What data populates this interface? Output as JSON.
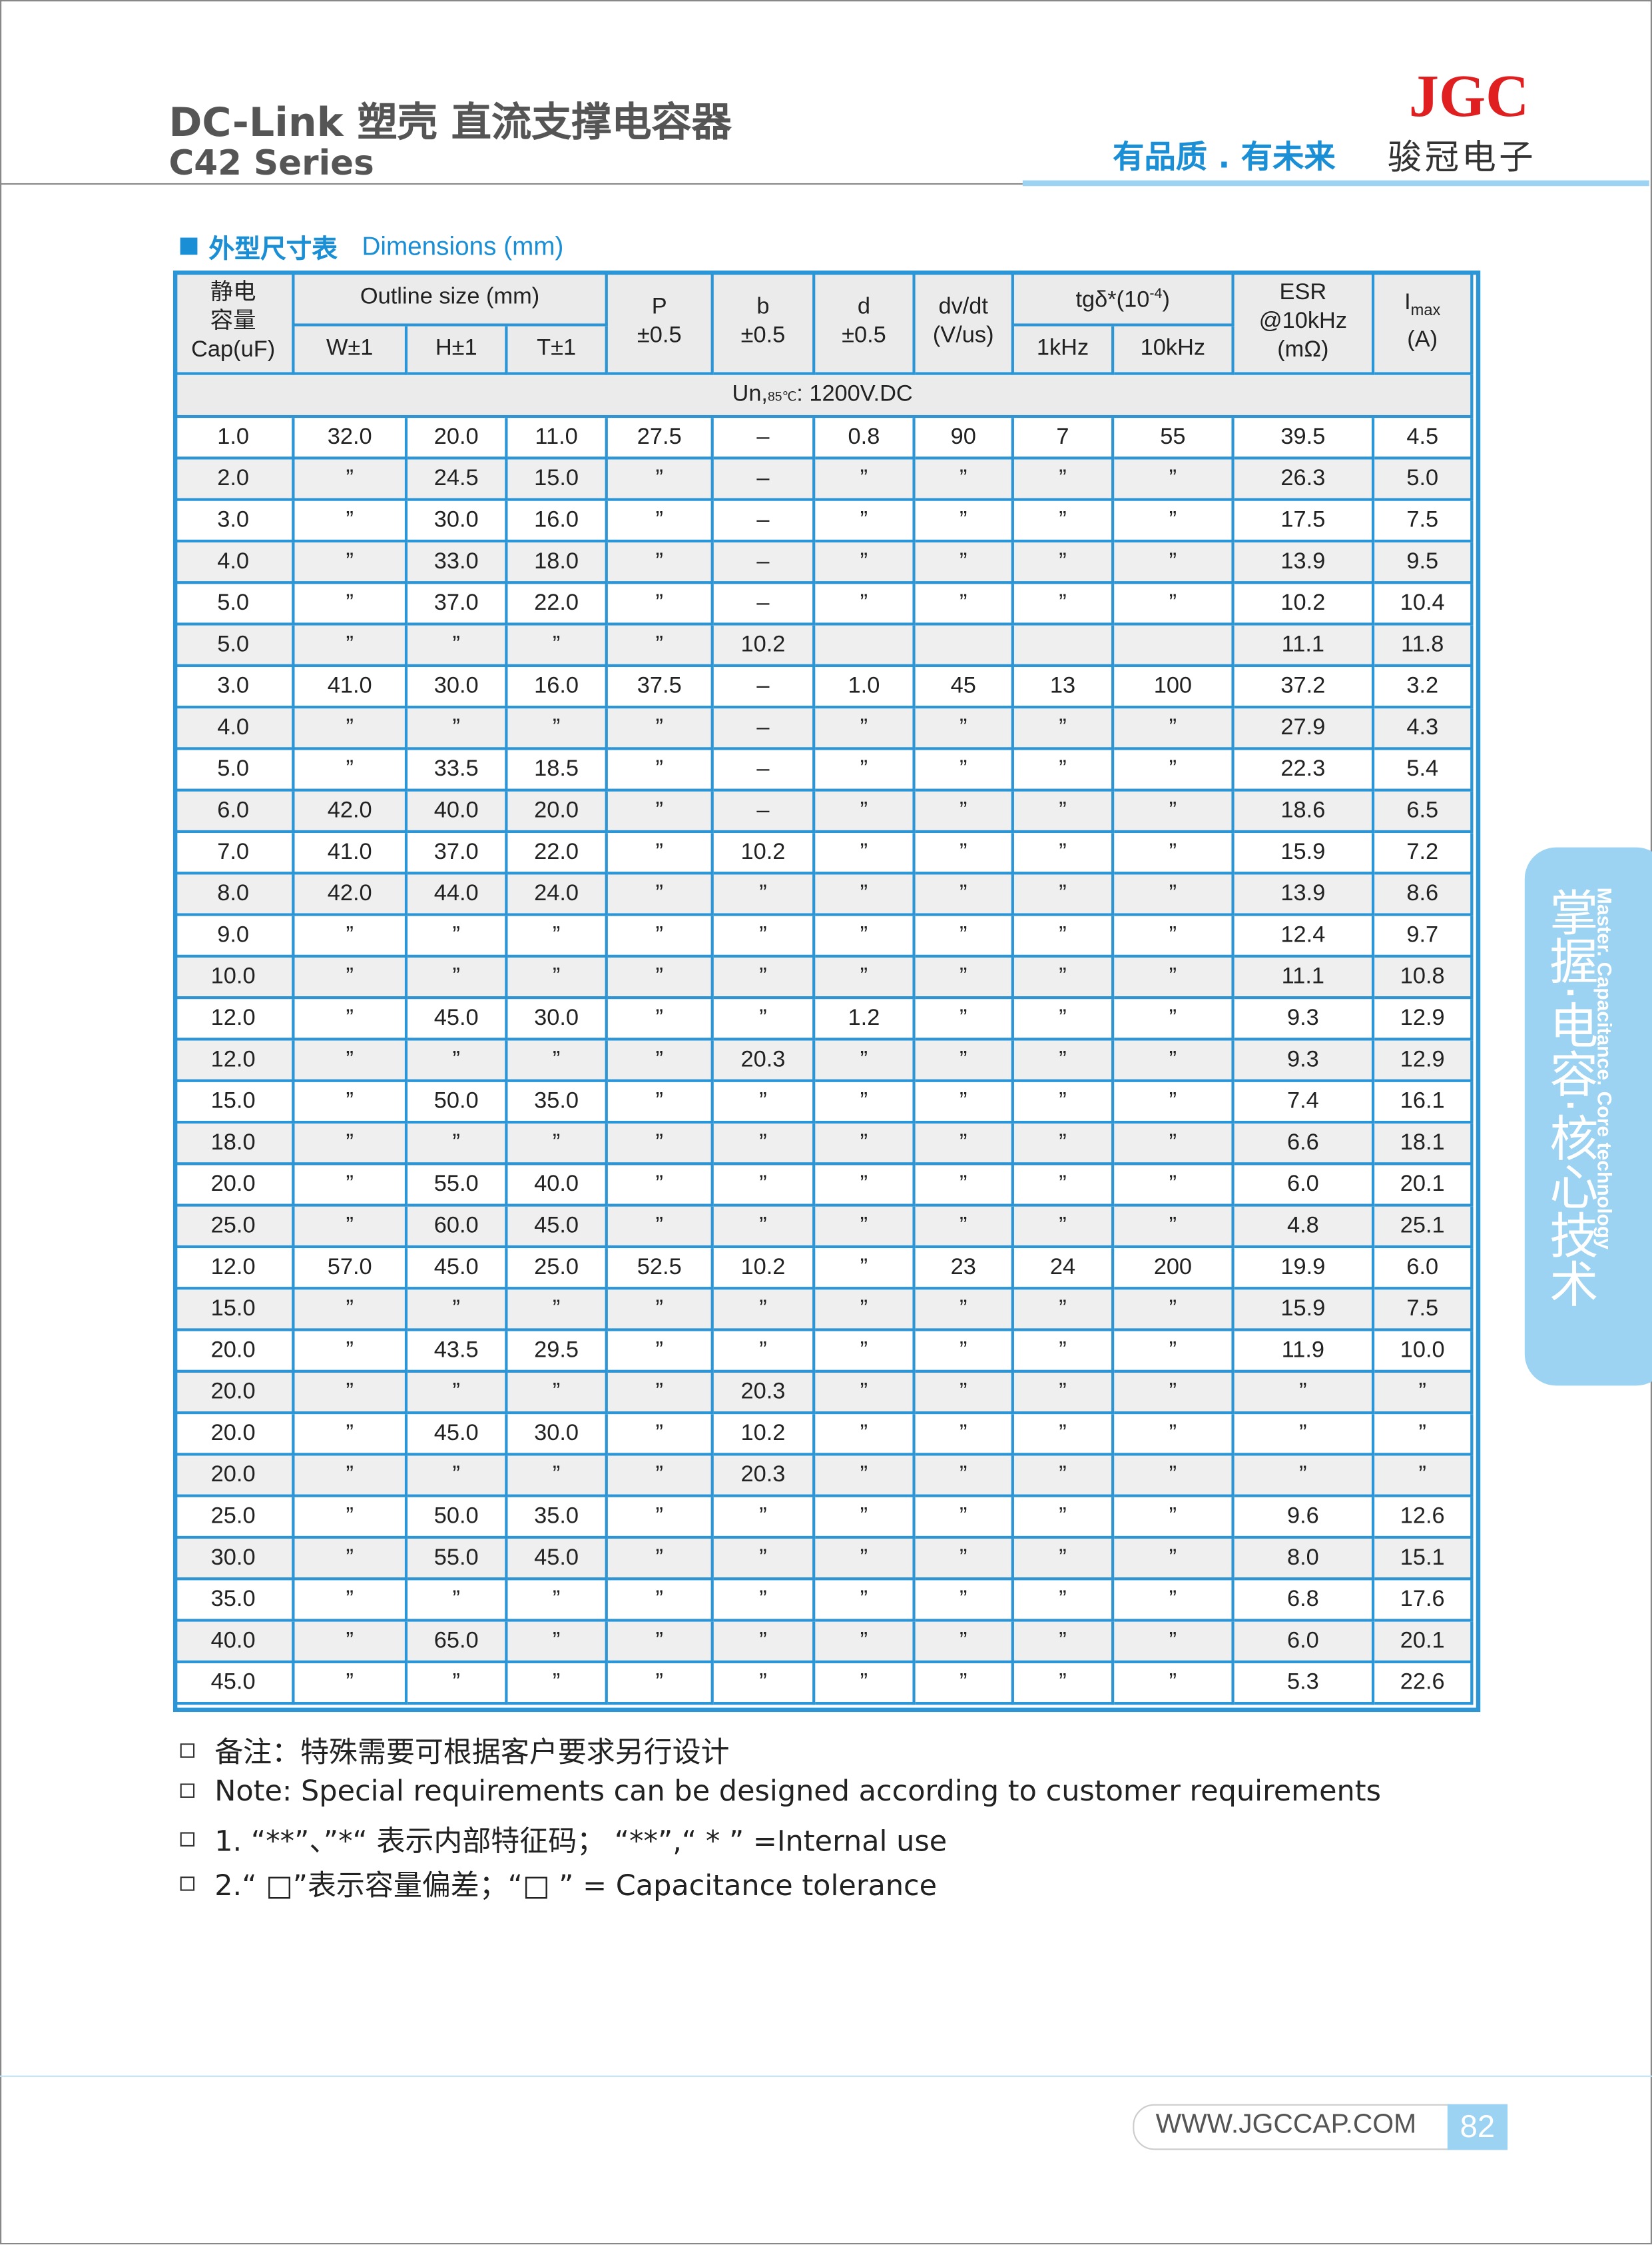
{
  "header": {
    "title": "DC-Link 塑壳  直流支撑电容器",
    "series": "C42 Series",
    "logo": "JGC",
    "slogan": "有品质 . 有未来",
    "company": "骏冠电子"
  },
  "section": {
    "title_cn": "外型尺寸表",
    "title_en": "Dimensions  (mm)"
  },
  "table": {
    "head": {
      "cap": [
        "静电",
        "容量",
        "Cap(uF)"
      ],
      "outline": "Outline size (mm)",
      "w": "W±1",
      "h": "H±1",
      "t": "T±1",
      "p": [
        "P",
        "±0.5"
      ],
      "b": [
        "b",
        "±0.5"
      ],
      "d": [
        "d",
        "±0.5"
      ],
      "dvdt": [
        "dv/dt",
        "(V/us)"
      ],
      "tg": {
        "text": "tgδ*(10",
        "sup": "-4",
        "end": ")"
      },
      "k1": "1kHz",
      "k10": "10kHz",
      "esr": [
        "ESR",
        "@10kHz",
        "(mΩ)"
      ],
      "imax": {
        "text": "I",
        "sub": "max",
        "unit": "(A)"
      }
    },
    "voltage": {
      "text": "Un,",
      "sub": "85℃",
      "end": ": 1200V.DC"
    },
    "rows": [
      [
        "1.0",
        "32.0",
        "20.0",
        "11.0",
        "27.5",
        "–",
        "0.8",
        "90",
        "7",
        "55",
        "39.5",
        "4.5"
      ],
      [
        "2.0",
        "”",
        "24.5",
        "15.0",
        "”",
        "–",
        "”",
        "”",
        "”",
        "”",
        "26.3",
        "5.0"
      ],
      [
        "3.0",
        "”",
        "30.0",
        "16.0",
        "”",
        "–",
        "”",
        "”",
        "”",
        "”",
        "17.5",
        "7.5"
      ],
      [
        "4.0",
        "”",
        "33.0",
        "18.0",
        "”",
        "–",
        "”",
        "”",
        "”",
        "”",
        "13.9",
        "9.5"
      ],
      [
        "5.0",
        "”",
        "37.0",
        "22.0",
        "”",
        "–",
        "”",
        "”",
        "”",
        "”",
        "10.2",
        "10.4"
      ],
      [
        "5.0",
        "”",
        "”",
        "”",
        "”",
        "10.2",
        null,
        null,
        null,
        null,
        "11.1",
        "11.8"
      ],
      [
        "3.0",
        "41.0",
        "30.0",
        "16.0",
        "37.5",
        "–",
        "1.0",
        "45",
        "13",
        "100",
        "37.2",
        "3.2"
      ],
      [
        "4.0",
        "”",
        "”",
        "”",
        "”",
        "–",
        "”",
        "”",
        "”",
        "”",
        "27.9",
        "4.3"
      ],
      [
        "5.0",
        "”",
        "33.5",
        "18.5",
        "”",
        "–",
        "”",
        "”",
        "”",
        "”",
        "22.3",
        "5.4"
      ],
      [
        "6.0",
        "42.0",
        "40.0",
        "20.0",
        "”",
        "–",
        "”",
        "”",
        "”",
        "”",
        "18.6",
        "6.5"
      ],
      [
        "7.0",
        "41.0",
        "37.0",
        "22.0",
        "”",
        "10.2",
        "”",
        "”",
        "”",
        "”",
        "15.9",
        "7.2"
      ],
      [
        "8.0",
        "42.0",
        "44.0",
        "24.0",
        "”",
        "”",
        "”",
        "”",
        "”",
        "”",
        "13.9",
        "8.6"
      ],
      [
        "9.0",
        "”",
        "”",
        "”",
        "”",
        "”",
        "”",
        "”",
        "”",
        "”",
        "12.4",
        "9.7"
      ],
      [
        "10.0",
        "”",
        "”",
        "”",
        "”",
        "”",
        "”",
        "”",
        "”",
        "”",
        "11.1",
        "10.8"
      ],
      [
        "12.0",
        "”",
        "45.0",
        "30.0",
        "”",
        "”",
        "1.2",
        "”",
        "”",
        "”",
        "9.3",
        "12.9"
      ],
      [
        "12.0",
        "”",
        "”",
        "”",
        "”",
        "20.3",
        "”",
        "”",
        "”",
        "”",
        "9.3",
        "12.9"
      ],
      [
        "15.0",
        "”",
        "50.0",
        "35.0",
        "”",
        "”",
        "”",
        "”",
        "”",
        "”",
        "7.4",
        "16.1"
      ],
      [
        "18.0",
        "”",
        "”",
        "”",
        "”",
        "”",
        "”",
        "”",
        "”",
        "”",
        "6.6",
        "18.1"
      ],
      [
        "20.0",
        "”",
        "55.0",
        "40.0",
        "”",
        "”",
        "”",
        "”",
        "”",
        "”",
        "6.0",
        "20.1"
      ],
      [
        "25.0",
        "”",
        "60.0",
        "45.0",
        "”",
        "”",
        "”",
        "”",
        "”",
        "”",
        "4.8",
        "25.1"
      ],
      [
        "12.0",
        "57.0",
        "45.0",
        "25.0",
        "52.5",
        "10.2",
        "”",
        "23",
        "24",
        "200",
        "19.9",
        "6.0"
      ],
      [
        "15.0",
        "”",
        "”",
        "”",
        "”",
        "”",
        "”",
        "”",
        "”",
        "”",
        "15.9",
        "7.5"
      ],
      [
        "20.0",
        "”",
        "43.5",
        "29.5",
        "”",
        "”",
        "”",
        "”",
        "”",
        "”",
        "11.9",
        "10.0"
      ],
      [
        "20.0",
        "”",
        "”",
        "”",
        "”",
        "20.3",
        "”",
        "”",
        "”",
        "”",
        "”",
        "”"
      ],
      [
        "20.0",
        "”",
        "45.0",
        "30.0",
        "”",
        "10.2",
        "”",
        "”",
        "”",
        "”",
        "”",
        "”"
      ],
      [
        "20.0",
        "”",
        "”",
        "”",
        "”",
        "20.3",
        "”",
        "”",
        "”",
        "”",
        "”",
        "”"
      ],
      [
        "25.0",
        "”",
        "50.0",
        "35.0",
        "”",
        "”",
        "”",
        "”",
        "”",
        "”",
        "9.6",
        "12.6"
      ],
      [
        "30.0",
        "”",
        "55.0",
        "45.0",
        "”",
        "”",
        "”",
        "”",
        "”",
        "”",
        "8.0",
        "15.1"
      ],
      [
        "35.0",
        "”",
        "”",
        "”",
        "”",
        "”",
        "”",
        "”",
        "”",
        "”",
        "6.8",
        "17.6"
      ],
      [
        "40.0",
        "”",
        "65.0",
        "”",
        "”",
        "”",
        "”",
        "”",
        "”",
        "”",
        "6.0",
        "20.1"
      ],
      [
        "45.0",
        "”",
        "”",
        "”",
        "”",
        "”",
        "”",
        "”",
        "”",
        "”",
        "5.3",
        "22.6"
      ]
    ]
  },
  "notes": [
    "备注：特殊需要可根据客户要求另行设计",
    "Note: Special requirements can be designed according to customer requirements",
    "1. “**”、”*“ 表示内部特征码；  “**”,“ * ” =Internal use",
    "2.“ □”表示容量偏差；“□ ”  = Capacitance tolerance"
  ],
  "side_tab": {
    "cn": "掌握·电容·核心技术",
    "en": "Master. Capacitance. Core technology"
  },
  "footer": {
    "url": "WWW.JGCCAP.COM",
    "page": "82"
  }
}
